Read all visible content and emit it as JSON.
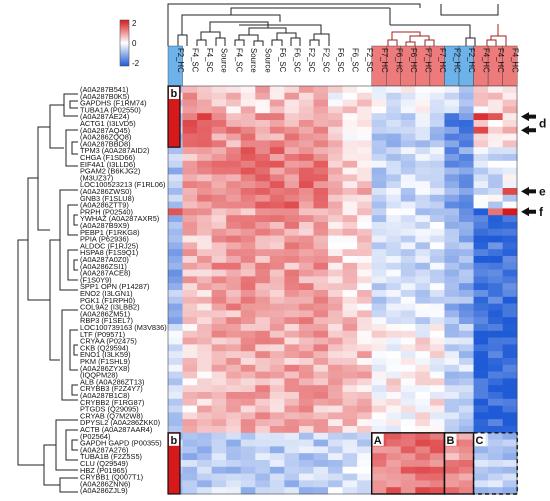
{
  "chart_data": {
    "type": "heatmap",
    "title": "",
    "colorbar": {
      "ticks": [
        "2",
        "0",
        "-2"
      ],
      "colors": {
        "high": "#d7191c",
        "mid": "#ffffff",
        "low": "#1f5bd6"
      },
      "range": [
        -2,
        2
      ]
    },
    "columns": [
      "F2_HC",
      "F4_SC",
      "F4_SC",
      "Source",
      "F4_SC",
      "Source",
      "Source",
      "F6_SC",
      "F6_SC",
      "F2_SC",
      "F2_SC",
      "F6_SC",
      "F6_SC",
      "F2_SC",
      "F7_HC",
      "F6_HC",
      "F6_HC",
      "F7_HC",
      "F7_HC",
      "F2_HC",
      "F2_HC",
      "F4_HC",
      "F4_HC",
      "F4_HC"
    ],
    "column_groups": [
      "blue",
      "none",
      "none",
      "none",
      "none",
      "none",
      "none",
      "none",
      "none",
      "none",
      "none",
      "none",
      "none",
      "none",
      "red",
      "red",
      "red",
      "red",
      "red",
      "blue",
      "blue",
      "red",
      "red",
      "red"
    ],
    "group_colors": {
      "red": "#ee7b7b",
      "blue": "#6db3ea"
    },
    "rows": [
      "(A0A287B541)",
      "(A0A287B0K5)",
      "GAPDHS (F1RM74)",
      "TUBA1A (P02550)",
      "(A0A287AE24)",
      "ACTG1 (I3LVD5)",
      "(A0A287AQ45)",
      "(A0A286ZQQ8)",
      "(A0A287BBD8)",
      "TPM3 (A0A287AID2)",
      "CHGA (F1SD66)",
      "EIF4A1 (I3LLD6)",
      "PGAM2 (B6KJG2)",
      "(M3UZ37)",
      "LOC100523213 (F1RL06)",
      "(A0A286ZWS0)",
      "GNB3 (F1SLU8)",
      "(A0A286ZTT9)",
      "PRPH (P02540)",
      "YWHAZ (A0A287AXR5)",
      "(A0A287B9X9)",
      "PEBP1 (F1RKG8)",
      "PPIA (P62936)",
      "ALDOC (F1RJ25)",
      "HSPA8 (F1S9Q1)",
      "(A0A287A0Z0)",
      "(A0A286ZSI1)",
      "(A0A287ACE8)",
      "(F1S0Y9)",
      "SPP1 OPN (P14287)",
      "ENO2 (I3LGN1)",
      "PGK1 (F1RPH0)",
      "COL9A2 (I3LBB2)",
      "(A0A286ZM51)",
      "RBP3 (F1SEL7)",
      "LOC100739163 (M3V836)",
      "LTF (P09571)",
      "CRYAA (P02475)",
      "CKB (Q29594)",
      "ENO1 (I3LK59)",
      "PKM (F1SHL9)",
      "(A0A286ZYX8)",
      "(IQQPM28)",
      "ALB (A0A286ZT13)",
      "CRYBB3 (F2Z4Y7)",
      "(A0A287B1C8)",
      "CRYBB2 (F1RG87)",
      "PTGDS (Q29095)",
      "CRYAB (Q7M2W8)",
      "DPYSL2 (A0A286ZKK0)",
      "ACTB (A0A287AAR4)",
      "(P02564)",
      "GAPDH GAPD (P00355)",
      "(A0A287A276)",
      "TUBA1B (F2Z5S5)",
      "CLU (Q29549)",
      "HBZ (P01965)",
      "CRYBB1 (Q007T1)",
      "(A0A286ZNN6)",
      "(A0A286ZJL9)"
    ],
    "row_side_bars": [
      {
        "label": "b",
        "color": "#d7191c",
        "from_row": 0,
        "to_row": 8
      },
      {
        "label": "b",
        "color": "#d7191c",
        "from_row": 51,
        "to_row": 59
      }
    ],
    "boxes": [
      {
        "label": "A",
        "style": "solid",
        "col_from": 14,
        "col_to": 18,
        "row_from": 51,
        "row_to": 59
      },
      {
        "label": "B",
        "style": "solid",
        "col_from": 19,
        "col_to": 20,
        "row_from": 51,
        "row_to": 59
      },
      {
        "label": "C",
        "style": "dashed",
        "col_from": 21,
        "col_to": 23,
        "row_from": 51,
        "row_to": 59
      }
    ],
    "arrows": [
      {
        "label": "d",
        "rows": [
          4,
          6
        ]
      },
      {
        "label": "e",
        "rows": [
          15
        ]
      },
      {
        "label": "f",
        "rows": [
          18
        ]
      }
    ],
    "blocks": [
      {
        "rows": [
          0,
          3
        ],
        "cols": [
          0,
          0
        ],
        "value": -0.3
      },
      {
        "rows": [
          0,
          3
        ],
        "cols": [
          1,
          2
        ],
        "value": 0.9
      },
      {
        "rows": [
          0,
          3
        ],
        "cols": [
          3,
          10
        ],
        "value": 0.5
      },
      {
        "rows": [
          0,
          3
        ],
        "cols": [
          11,
          13
        ],
        "value": 0.2
      },
      {
        "rows": [
          0,
          3
        ],
        "cols": [
          14,
          18
        ],
        "value": -0.2
      },
      {
        "rows": [
          0,
          3
        ],
        "cols": [
          19,
          20
        ],
        "value": -0.5
      },
      {
        "rows": [
          0,
          3
        ],
        "cols": [
          21,
          23
        ],
        "value": 0.3
      },
      {
        "rows": [
          4,
          8
        ],
        "cols": [
          0,
          0
        ],
        "value": -0.6
      },
      {
        "rows": [
          4,
          8
        ],
        "cols": [
          1,
          2
        ],
        "value": 1.3
      },
      {
        "rows": [
          4,
          8
        ],
        "cols": [
          3,
          10
        ],
        "value": 0.9
      },
      {
        "rows": [
          4,
          8
        ],
        "cols": [
          11,
          13
        ],
        "value": 0.3
      },
      {
        "rows": [
          4,
          8
        ],
        "cols": [
          14,
          18
        ],
        "value": -0.6
      },
      {
        "rows": [
          4,
          8
        ],
        "cols": [
          19,
          20
        ],
        "value": -1.4
      },
      {
        "rows": [
          4,
          8
        ],
        "cols": [
          21,
          23
        ],
        "value": 0.4
      },
      {
        "rows": [
          9,
          17
        ],
        "cols": [
          0,
          0
        ],
        "value": -0.8
      },
      {
        "rows": [
          9,
          17
        ],
        "cols": [
          1,
          2
        ],
        "value": 0.8
      },
      {
        "rows": [
          9,
          17
        ],
        "cols": [
          3,
          10
        ],
        "value": 1.1
      },
      {
        "rows": [
          9,
          17
        ],
        "cols": [
          11,
          13
        ],
        "value": 0.5
      },
      {
        "rows": [
          9,
          17
        ],
        "cols": [
          14,
          18
        ],
        "value": -0.5
      },
      {
        "rows": [
          9,
          17
        ],
        "cols": [
          19,
          20
        ],
        "value": -1.2
      },
      {
        "rows": [
          9,
          17
        ],
        "cols": [
          21,
          23
        ],
        "value": -0.3
      },
      {
        "rows": [
          18,
          34
        ],
        "cols": [
          0,
          0
        ],
        "value": -0.9
      },
      {
        "rows": [
          18,
          34
        ],
        "cols": [
          1,
          2
        ],
        "value": 0.6
      },
      {
        "rows": [
          18,
          34
        ],
        "cols": [
          3,
          10
        ],
        "value": 0.8
      },
      {
        "rows": [
          18,
          34
        ],
        "cols": [
          11,
          13
        ],
        "value": 0.4
      },
      {
        "rows": [
          18,
          34
        ],
        "cols": [
          14,
          18
        ],
        "value": -0.4
      },
      {
        "rows": [
          18,
          34
        ],
        "cols": [
          19,
          20
        ],
        "value": -1.0
      },
      {
        "rows": [
          18,
          34
        ],
        "cols": [
          21,
          23
        ],
        "value": -1.7
      },
      {
        "rows": [
          35,
          50
        ],
        "cols": [
          0,
          0
        ],
        "value": -0.5
      },
      {
        "rows": [
          35,
          50
        ],
        "cols": [
          1,
          2
        ],
        "value": 0.4
      },
      {
        "rows": [
          35,
          50
        ],
        "cols": [
          3,
          10
        ],
        "value": 0.7
      },
      {
        "rows": [
          35,
          50
        ],
        "cols": [
          11,
          13
        ],
        "value": 0.5
      },
      {
        "rows": [
          35,
          50
        ],
        "cols": [
          14,
          18
        ],
        "value": 0.1
      },
      {
        "rows": [
          35,
          50
        ],
        "cols": [
          19,
          20
        ],
        "value": -0.5
      },
      {
        "rows": [
          35,
          50
        ],
        "cols": [
          21,
          23
        ],
        "value": -1.9
      },
      {
        "rows": [
          51,
          59
        ],
        "cols": [
          0,
          0
        ],
        "value": -0.6
      },
      {
        "rows": [
          51,
          59
        ],
        "cols": [
          1,
          2
        ],
        "value": -0.7
      },
      {
        "rows": [
          51,
          59
        ],
        "cols": [
          3,
          10
        ],
        "value": -0.6
      },
      {
        "rows": [
          51,
          59
        ],
        "cols": [
          11,
          13
        ],
        "value": -0.4
      },
      {
        "rows": [
          51,
          59
        ],
        "cols": [
          14,
          18
        ],
        "value": 1.2
      },
      {
        "rows": [
          51,
          59
        ],
        "cols": [
          19,
          20
        ],
        "value": 0.9
      },
      {
        "rows": [
          51,
          59
        ],
        "cols": [
          21,
          23
        ],
        "value": -0.6
      }
    ],
    "overrides": [
      {
        "row": 4,
        "col": 21,
        "value": 1.8
      },
      {
        "row": 4,
        "col": 22,
        "value": 1.5
      },
      {
        "row": 6,
        "col": 21,
        "value": 1.6
      },
      {
        "row": 15,
        "col": 23,
        "value": 1.6
      },
      {
        "row": 18,
        "col": 23,
        "value": 2.0
      },
      {
        "row": 18,
        "col": 22,
        "value": 1.2
      },
      {
        "row": 18,
        "col": 0,
        "value": 1.5
      }
    ]
  }
}
